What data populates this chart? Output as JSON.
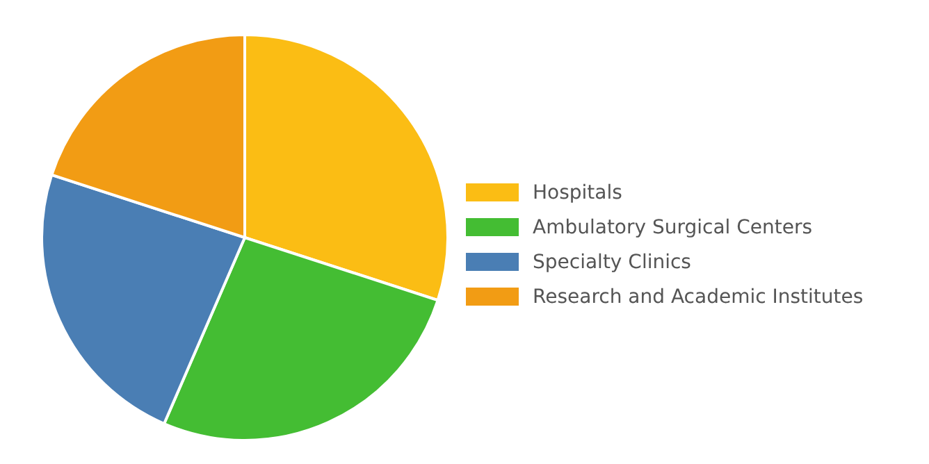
{
  "chart_data": {
    "type": "pie",
    "categories": [
      "Hospitals",
      "Ambulatory Surgical Centers",
      "Specialty Clinics",
      "Research and Academic Institutes"
    ],
    "values": [
      30,
      26.5,
      23.5,
      20
    ],
    "colors": [
      "#fbbd14",
      "#44bd33",
      "#4a7eb4",
      "#f29c14"
    ],
    "legend": "right"
  }
}
